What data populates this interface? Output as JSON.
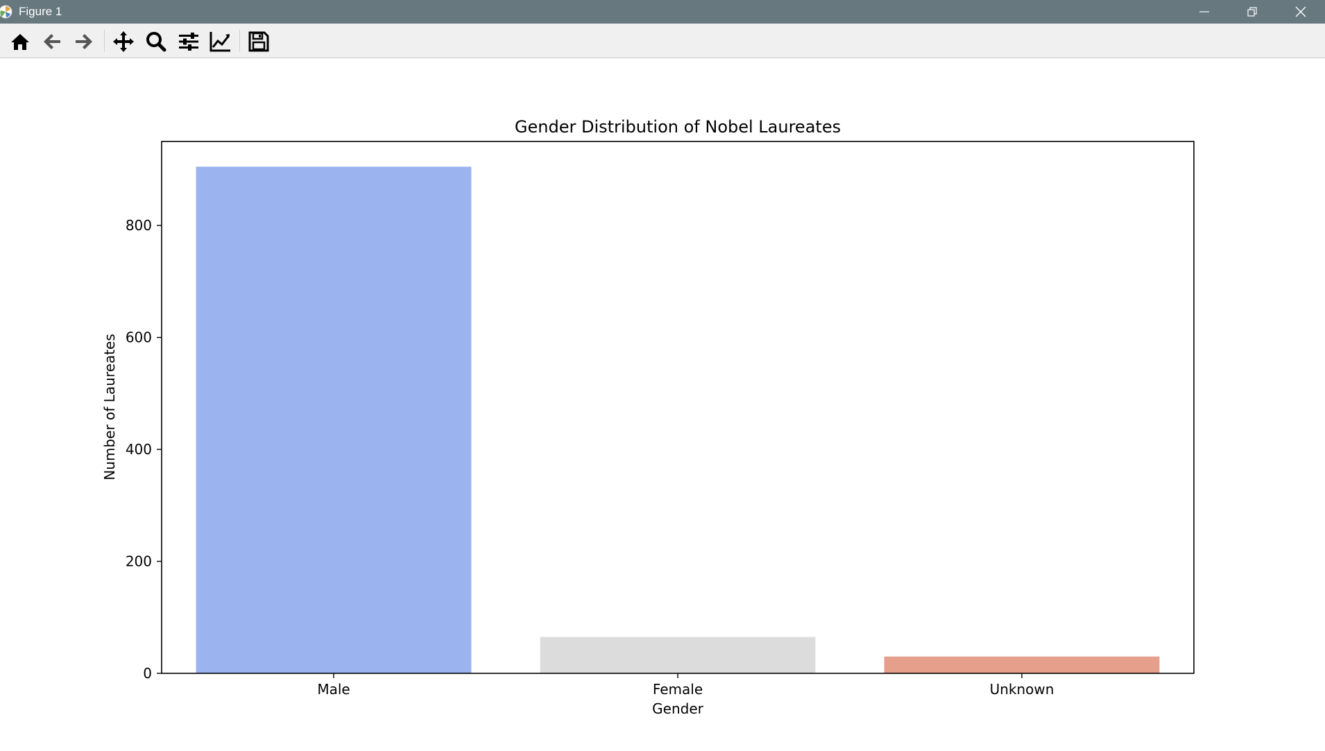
{
  "window": {
    "title": "Figure 1",
    "controls": [
      "minimize",
      "restore",
      "close"
    ]
  },
  "toolbar": {
    "buttons": [
      {
        "name": "home",
        "icon": "home-icon"
      },
      {
        "name": "back",
        "icon": "arrow-left-icon"
      },
      {
        "name": "forward",
        "icon": "arrow-right-icon"
      },
      {
        "name": "pan",
        "icon": "move-icon"
      },
      {
        "name": "zoom",
        "icon": "magnifier-icon"
      },
      {
        "name": "subplots",
        "icon": "sliders-icon"
      },
      {
        "name": "customize",
        "icon": "line-chart-icon"
      },
      {
        "name": "save",
        "icon": "floppy-disk-icon"
      }
    ]
  },
  "chart_data": {
    "type": "bar",
    "title": "Gender Distribution of Nobel Laureates",
    "xlabel": "Gender",
    "ylabel": "Number of Laureates",
    "categories": [
      "Male",
      "Female",
      "Unknown"
    ],
    "values": [
      905,
      65,
      30
    ],
    "colors": [
      "#9bb4ef",
      "#dcdcdc",
      "#e59f8a"
    ],
    "ylim": [
      0,
      950
    ],
    "yticks": [
      0,
      200,
      400,
      600,
      800
    ],
    "grid": false,
    "legend": "none"
  }
}
